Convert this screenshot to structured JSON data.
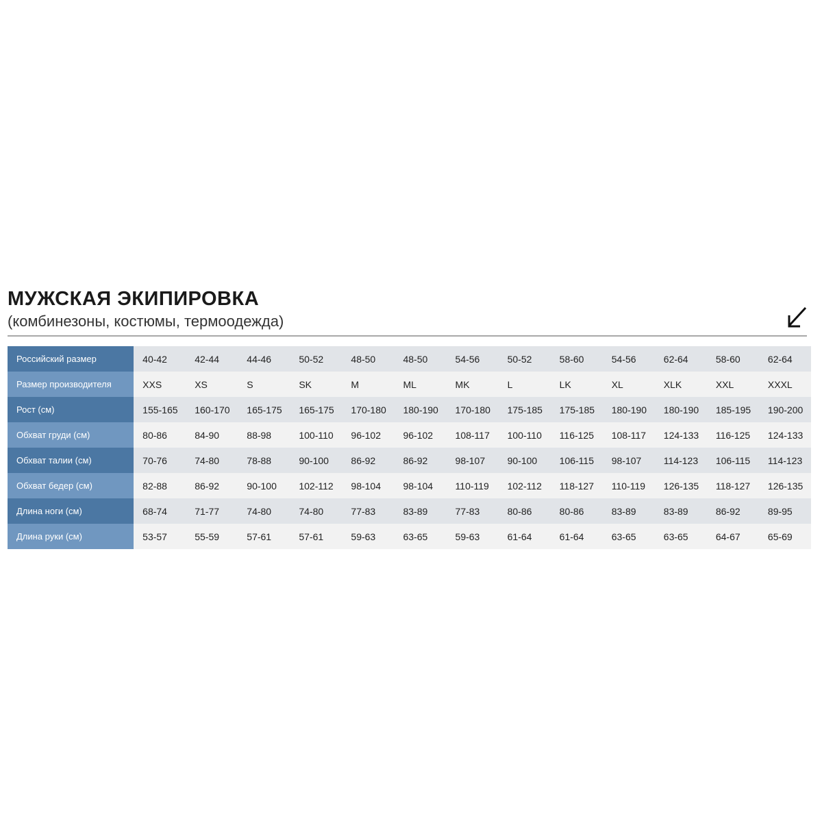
{
  "header": {
    "title": "МУЖСКАЯ ЭКИПИРОВКА",
    "subtitle": "(комбинезоны, костюмы, термоодежда)",
    "icon": "arrow-down-left-icon"
  },
  "colors": {
    "label_dark": "#4b77a3",
    "label_light": "#7097c0",
    "row_dark": "#e1e4e8",
    "row_light": "#f2f2f2"
  },
  "table": {
    "rows": [
      {
        "label": "Российский размер",
        "values": [
          "40-42",
          "42-44",
          "44-46",
          "50-52",
          "48-50",
          "48-50",
          "54-56",
          "50-52",
          "58-60",
          "54-56",
          "62-64",
          "58-60",
          "62-64"
        ]
      },
      {
        "label": "Размер производителя",
        "values": [
          "XXS",
          "XS",
          "S",
          "SK",
          "M",
          "ML",
          "MK",
          "L",
          "LK",
          "XL",
          "XLK",
          "XXL",
          "XXXL"
        ]
      },
      {
        "label": "Рост (см)",
        "values": [
          "155-165",
          "160-170",
          "165-175",
          "165-175",
          "170-180",
          "180-190",
          "170-180",
          "175-185",
          "175-185",
          "180-190",
          "180-190",
          "185-195",
          "190-200"
        ]
      },
      {
        "label": "Обхват груди (см)",
        "values": [
          "80-86",
          "84-90",
          "88-98",
          "100-110",
          "96-102",
          "96-102",
          "108-117",
          "100-110",
          "116-125",
          "108-117",
          "124-133",
          "116-125",
          "124-133"
        ]
      },
      {
        "label": "Обхват талии (см)",
        "values": [
          "70-76",
          "74-80",
          "78-88",
          "90-100",
          "86-92",
          "86-92",
          "98-107",
          "90-100",
          "106-115",
          "98-107",
          "114-123",
          "106-115",
          "114-123"
        ]
      },
      {
        "label": "Обхват бедер (см)",
        "values": [
          "82-88",
          "86-92",
          "90-100",
          "102-112",
          "98-104",
          "98-104",
          "110-119",
          "102-112",
          "118-127",
          "110-119",
          "126-135",
          "118-127",
          "126-135"
        ]
      },
      {
        "label": "Длина ноги (см)",
        "values": [
          "68-74",
          "71-77",
          "74-80",
          "74-80",
          "77-83",
          "83-89",
          "77-83",
          "80-86",
          "80-86",
          "83-89",
          "83-89",
          "86-92",
          "89-95"
        ]
      },
      {
        "label": "Длина руки (см)",
        "values": [
          "53-57",
          "55-59",
          "57-61",
          "57-61",
          "59-63",
          "63-65",
          "59-63",
          "61-64",
          "61-64",
          "63-65",
          "63-65",
          "64-67",
          "65-69"
        ]
      }
    ]
  }
}
